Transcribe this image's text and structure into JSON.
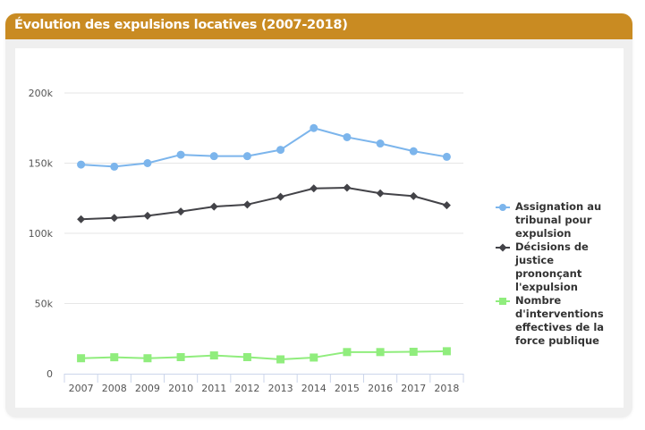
{
  "card": {
    "title": "Évolution des expulsions locatives (2007-2018)",
    "header_color": "#c98b22"
  },
  "chart_data": {
    "type": "line",
    "title": "Évolution des expulsions locatives (2007-2018)",
    "xlabel": "",
    "ylabel": "",
    "categories": [
      "2007",
      "2008",
      "2009",
      "2010",
      "2011",
      "2012",
      "2013",
      "2014",
      "2015",
      "2016",
      "2017",
      "2018"
    ],
    "ylim": [
      0,
      200000
    ],
    "yticks": [
      0,
      50000,
      100000,
      150000,
      200000
    ],
    "ytick_labels": [
      "0",
      "50k",
      "100k",
      "150k",
      "200k"
    ],
    "grid": true,
    "legend_position": "right",
    "series": [
      {
        "name": "Assignation au tribunal pour expulsion",
        "color": "#7cb5ec",
        "marker": "circle",
        "values": [
          149000,
          147500,
          150000,
          156000,
          155000,
          155000,
          159500,
          175000,
          168500,
          164000,
          158500,
          154500
        ]
      },
      {
        "name": "Décisions de justice prononçant l'expulsion",
        "color": "#434348",
        "marker": "diamond",
        "values": [
          110000,
          111000,
          112500,
          115500,
          119000,
          120500,
          126000,
          132000,
          132500,
          128500,
          126500,
          120000
        ]
      },
      {
        "name": "Nombre d'interventions effectives de la force publique",
        "color": "#90ed7d",
        "marker": "square",
        "values": [
          11000,
          11700,
          11000,
          11800,
          13000,
          11800,
          10200,
          11500,
          15400,
          15400,
          15600,
          16000
        ]
      }
    ]
  }
}
